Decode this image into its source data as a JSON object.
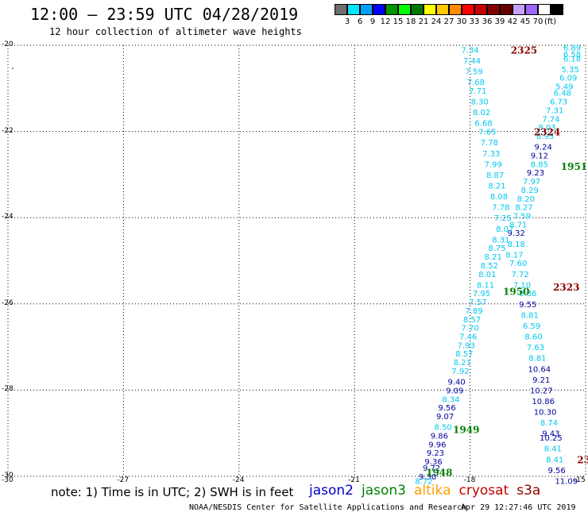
{
  "header": {
    "title": "12:00 — 23:59 UTC 04/28/2019",
    "subtitle": "12 hour collection of altimeter wave heights"
  },
  "colorbar": {
    "colors": [
      "#6e6e6e",
      "#00e6ff",
      "#00a0ff",
      "#0000ff",
      "#009600",
      "#00ff00",
      "#007800",
      "#ffff00",
      "#ffc800",
      "#ff8c00",
      "#ff0000",
      "#c80000",
      "#820000",
      "#640000",
      "#c8a0ff",
      "#a064ff",
      "#ffffff",
      "#000000"
    ],
    "labels": [
      "3",
      "6",
      "9",
      "12",
      "15",
      "18",
      "21",
      "24",
      "27",
      "30",
      "33",
      "36",
      "39",
      "42",
      "45",
      "70"
    ],
    "unit": "(ft)"
  },
  "axes": {
    "y_labels": [
      "-20",
      "-22",
      "-24",
      "-26",
      "-28",
      "-30"
    ],
    "x_labels": [
      "-30",
      "-27",
      "-24",
      "-21",
      "-18",
      "-15"
    ]
  },
  "tracks": {
    "orbits": [
      {
        "label": "2325",
        "lat": -20.1,
        "lon": -16.6,
        "color": "#8b0000"
      },
      {
        "label": "2324",
        "lat": -22.0,
        "lon": -16.0,
        "color": "#8b0000"
      },
      {
        "label": "1951",
        "lat": -22.8,
        "lon": -15.3,
        "color": "#008000"
      },
      {
        "label": "2323",
        "lat": -25.6,
        "lon": -15.5,
        "color": "#8b0000"
      },
      {
        "label": "1950",
        "lat": -25.7,
        "lon": -16.8,
        "color": "#008000"
      },
      {
        "label": "1949",
        "lat": -28.9,
        "lon": -18.1,
        "color": "#008000"
      },
      {
        "label": "1948",
        "lat": -29.9,
        "lon": -18.8,
        "color": "#008000"
      },
      {
        "label": "23",
        "lat": -29.6,
        "lon": -15.05,
        "color": "#8b0000"
      }
    ],
    "track_a": [
      {
        "lat": -20.05,
        "lon": -15.35,
        "v": "6.89",
        "c": "#00c8f0"
      },
      {
        "lat": -20.2,
        "lon": -15.35,
        "v": "6.58",
        "c": "#00c8f0"
      },
      {
        "lat": -20.3,
        "lon": -15.35,
        "v": "6.18",
        "c": "#00c8f0"
      },
      {
        "lat": -20.55,
        "lon": -15.4,
        "v": "5.35",
        "c": "#00c8f0"
      },
      {
        "lat": -20.75,
        "lon": -15.45,
        "v": "6.09",
        "c": "#00c8f0"
      },
      {
        "lat": -20.95,
        "lon": -15.55,
        "v": "5.49",
        "c": "#00c8f0"
      },
      {
        "lat": -21.1,
        "lon": -15.6,
        "v": "6.48",
        "c": "#00c8f0"
      },
      {
        "lat": -21.3,
        "lon": -15.7,
        "v": "6.73",
        "c": "#00c8f0"
      },
      {
        "lat": -21.5,
        "lon": -15.8,
        "v": "7.31",
        "c": "#00c8f0"
      },
      {
        "lat": -21.7,
        "lon": -15.9,
        "v": "7.74",
        "c": "#00c8f0"
      },
      {
        "lat": -21.9,
        "lon": -16.0,
        "v": "8.03",
        "c": "#00c8f0"
      },
      {
        "lat": -22.1,
        "lon": -16.05,
        "v": "8.93",
        "c": "#00c8f0"
      },
      {
        "lat": -22.35,
        "lon": -16.1,
        "v": "9.24",
        "c": "#0000a0"
      },
      {
        "lat": -22.55,
        "lon": -16.2,
        "v": "9.12",
        "c": "#0000a0"
      },
      {
        "lat": -22.75,
        "lon": -16.2,
        "v": "8.85",
        "c": "#00c8f0"
      },
      {
        "lat": -22.95,
        "lon": -16.3,
        "v": "9.23",
        "c": "#0000a0"
      },
      {
        "lat": -23.15,
        "lon": -16.4,
        "v": "7.97",
        "c": "#00c8f0"
      },
      {
        "lat": -23.35,
        "lon": -16.45,
        "v": "8.29",
        "c": "#00c8f0"
      },
      {
        "lat": -23.55,
        "lon": -16.55,
        "v": "8.20",
        "c": "#00c8f0"
      },
      {
        "lat": -23.75,
        "lon": -16.6,
        "v": "8.27",
        "c": "#00c8f0"
      },
      {
        "lat": -23.95,
        "lon": -16.65,
        "v": "7.59",
        "c": "#00c8f0"
      },
      {
        "lat": -24.15,
        "lon": -16.75,
        "v": "8.71",
        "c": "#00c8f0"
      },
      {
        "lat": -24.35,
        "lon": -16.8,
        "v": "9.32",
        "c": "#0000a0"
      },
      {
        "lat": -24.6,
        "lon": -16.8,
        "v": "8.18",
        "c": "#00c8f0"
      },
      {
        "lat": -24.85,
        "lon": -16.85,
        "v": "8.17",
        "c": "#00c8f0"
      },
      {
        "lat": -25.05,
        "lon": -16.75,
        "v": "7.60",
        "c": "#00c8f0"
      },
      {
        "lat": -25.3,
        "lon": -16.7,
        "v": "7.72",
        "c": "#00c8f0"
      },
      {
        "lat": -25.55,
        "lon": -16.65,
        "v": "7.10",
        "c": "#00c8f0"
      },
      {
        "lat": -25.75,
        "lon": -16.5,
        "v": "8.36",
        "c": "#00c8f0"
      },
      {
        "lat": -26.0,
        "lon": -16.5,
        "v": "9.55",
        "c": "#0000a0"
      },
      {
        "lat": -26.25,
        "lon": -16.45,
        "v": "8.81",
        "c": "#00c8f0"
      },
      {
        "lat": -26.5,
        "lon": -16.4,
        "v": "6.59",
        "c": "#00c8f0"
      },
      {
        "lat": -26.75,
        "lon": -16.35,
        "v": "8.60",
        "c": "#00c8f0"
      },
      {
        "lat": -27.0,
        "lon": -16.3,
        "v": "7.63",
        "c": "#00c8f0"
      },
      {
        "lat": -27.25,
        "lon": -16.25,
        "v": "8.81",
        "c": "#00c8f0"
      },
      {
        "lat": -27.5,
        "lon": -16.2,
        "v": "10.64",
        "c": "#0000a0"
      },
      {
        "lat": -27.75,
        "lon": -16.15,
        "v": "9.21",
        "c": "#0000a0"
      },
      {
        "lat": -28.0,
        "lon": -16.15,
        "v": "10.27",
        "c": "#0000a0"
      },
      {
        "lat": -28.25,
        "lon": -16.1,
        "v": "10.86",
        "c": "#0000a0"
      },
      {
        "lat": -28.5,
        "lon": -16.05,
        "v": "10.30",
        "c": "#0000a0"
      },
      {
        "lat": -28.75,
        "lon": -15.95,
        "v": "8.74",
        "c": "#00c8f0"
      },
      {
        "lat": -29.0,
        "lon": -15.9,
        "v": "9.43",
        "c": "#0000a0"
      },
      {
        "lat": -29.1,
        "lon": -15.9,
        "v": "10.25",
        "c": "#0000a0"
      },
      {
        "lat": -29.35,
        "lon": -15.85,
        "v": "8.41",
        "c": "#00c8f0"
      },
      {
        "lat": -29.6,
        "lon": -15.8,
        "v": "8.41",
        "c": "#00c8f0"
      },
      {
        "lat": -29.85,
        "lon": -15.75,
        "v": "9.56",
        "c": "#0000a0"
      },
      {
        "lat": -30.1,
        "lon": -15.5,
        "v": "11.09",
        "c": "#0000a0"
      }
    ],
    "track_b": [
      {
        "lat": -20.1,
        "lon": -18.0,
        "v": "7.34",
        "c": "#00c8f0"
      },
      {
        "lat": -20.35,
        "lon": -17.95,
        "v": "7.44",
        "c": "#00c8f0"
      },
      {
        "lat": -20.6,
        "lon": -17.9,
        "v": "7.59",
        "c": "#00c8f0"
      },
      {
        "lat": -20.85,
        "lon": -17.85,
        "v": "7.68",
        "c": "#00c8f0"
      },
      {
        "lat": -21.05,
        "lon": -17.8,
        "v": "7.71",
        "c": "#00c8f0"
      },
      {
        "lat": -21.3,
        "lon": -17.75,
        "v": "8.30",
        "c": "#00c8f0"
      },
      {
        "lat": -21.55,
        "lon": -17.7,
        "v": "8.02",
        "c": "#00c8f0"
      },
      {
        "lat": -21.8,
        "lon": -17.65,
        "v": "6.68",
        "c": "#00c8f0"
      },
      {
        "lat": -22.0,
        "lon": -17.55,
        "v": "7.65",
        "c": "#00c8f0"
      },
      {
        "lat": -22.25,
        "lon": -17.5,
        "v": "7.78",
        "c": "#00c8f0"
      },
      {
        "lat": -22.5,
        "lon": -17.45,
        "v": "7.33",
        "c": "#00c8f0"
      },
      {
        "lat": -22.75,
        "lon": -17.4,
        "v": "7.99",
        "c": "#00c8f0"
      },
      {
        "lat": -23.0,
        "lon": -17.35,
        "v": "8.87",
        "c": "#00c8f0"
      },
      {
        "lat": -23.25,
        "lon": -17.3,
        "v": "8.21",
        "c": "#00c8f0"
      },
      {
        "lat": -23.5,
        "lon": -17.25,
        "v": "8.08",
        "c": "#00c8f0"
      },
      {
        "lat": -23.75,
        "lon": -17.2,
        "v": "7.78",
        "c": "#00c8f0"
      },
      {
        "lat": -24.0,
        "lon": -17.15,
        "v": "7.25",
        "c": "#00c8f0"
      },
      {
        "lat": -24.25,
        "lon": -17.1,
        "v": "8.07",
        "c": "#00c8f0"
      },
      {
        "lat": -24.5,
        "lon": -17.2,
        "v": "8.31",
        "c": "#00c8f0"
      },
      {
        "lat": -24.7,
        "lon": -17.3,
        "v": "8.75",
        "c": "#00c8f0"
      },
      {
        "lat": -24.9,
        "lon": -17.4,
        "v": "8.21",
        "c": "#00c8f0"
      },
      {
        "lat": -25.1,
        "lon": -17.5,
        "v": "8.52",
        "c": "#00c8f0"
      },
      {
        "lat": -25.3,
        "lon": -17.55,
        "v": "8.01",
        "c": "#00c8f0"
      },
      {
        "lat": -25.55,
        "lon": -17.6,
        "v": "8.11",
        "c": "#00c8f0"
      },
      {
        "lat": -25.75,
        "lon": -17.7,
        "v": "7.95",
        "c": "#00c8f0"
      },
      {
        "lat": -25.95,
        "lon": -17.8,
        "v": "7.57",
        "c": "#00c8f0"
      },
      {
        "lat": -26.15,
        "lon": -17.9,
        "v": "7.89",
        "c": "#00c8f0"
      },
      {
        "lat": -26.35,
        "lon": -17.95,
        "v": "8.57",
        "c": "#00c8f0"
      },
      {
        "lat": -26.55,
        "lon": -18.0,
        "v": "7.70",
        "c": "#00c8f0"
      },
      {
        "lat": -26.75,
        "lon": -18.05,
        "v": "7.46",
        "c": "#00c8f0"
      },
      {
        "lat": -26.95,
        "lon": -18.1,
        "v": "7.93",
        "c": "#00c8f0"
      },
      {
        "lat": -27.15,
        "lon": -18.15,
        "v": "8.57",
        "c": "#00c8f0"
      },
      {
        "lat": -27.35,
        "lon": -18.2,
        "v": "8.21",
        "c": "#00c8f0"
      },
      {
        "lat": -27.55,
        "lon": -18.25,
        "v": "7.92",
        "c": "#00c8f0"
      },
      {
        "lat": -27.8,
        "lon": -18.35,
        "v": "9.40",
        "c": "#0000a0"
      },
      {
        "lat": -28.0,
        "lon": -18.4,
        "v": "9.09",
        "c": "#0000a0"
      },
      {
        "lat": -28.2,
        "lon": -18.5,
        "v": "8.34",
        "c": "#00c8f0"
      },
      {
        "lat": -28.4,
        "lon": -18.6,
        "v": "9.56",
        "c": "#0000a0"
      },
      {
        "lat": -28.6,
        "lon": -18.65,
        "v": "9.07",
        "c": "#0000a0"
      },
      {
        "lat": -28.85,
        "lon": -18.7,
        "v": "8.50",
        "c": "#00c8f0"
      },
      {
        "lat": -29.05,
        "lon": -18.8,
        "v": "9.86",
        "c": "#0000a0"
      },
      {
        "lat": -29.25,
        "lon": -18.85,
        "v": "9.96",
        "c": "#0000a0"
      },
      {
        "lat": -29.45,
        "lon": -18.9,
        "v": "9.23",
        "c": "#0000a0"
      },
      {
        "lat": -29.65,
        "lon": -18.95,
        "v": "9.36",
        "c": "#0000a0"
      },
      {
        "lat": -29.8,
        "lon": -19.0,
        "v": "9.72",
        "c": "#0000a0"
      },
      {
        "lat": -30.0,
        "lon": -19.1,
        "v": "9.30",
        "c": "#0000a0"
      },
      {
        "lat": -30.1,
        "lon": -19.2,
        "v": "8.72",
        "c": "#00c8f0"
      }
    ]
  },
  "footer": {
    "note": "note: 1) Time is in UTC; 2) SWH is in feet",
    "legend": [
      {
        "label": "jason2",
        "color": "#0000c8"
      },
      {
        "label": "jason3",
        "color": "#008000"
      },
      {
        "label": "altika",
        "color": "#ffa000"
      },
      {
        "label": "cryosat",
        "color": "#c80000"
      },
      {
        "label": "s3a",
        "color": "#8b0000"
      }
    ],
    "credit": "NOAA/NESDIS Center for Satellite Applications and Research",
    "timestamp": "Apr 29 12:27:46 UTC 2019"
  }
}
